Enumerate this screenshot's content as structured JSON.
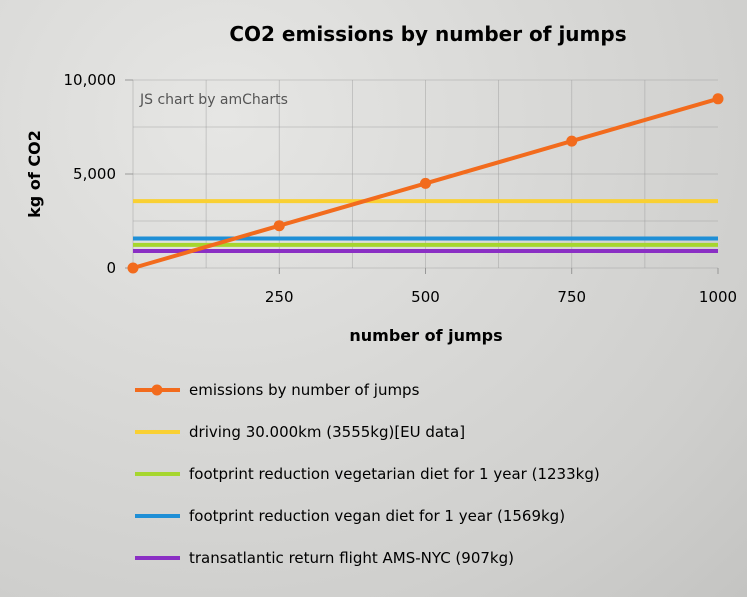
{
  "chart_data": {
    "type": "line",
    "title": "CO2 emissions by number of jumps",
    "xlabel": "number of jumps",
    "ylabel": "kg of CO2",
    "credit": "JS chart by amCharts",
    "xlim": [
      0,
      1000
    ],
    "ylim": [
      0,
      10000
    ],
    "x_ticks": [
      250,
      500,
      750,
      1000
    ],
    "x_tick_labels": [
      "250",
      "500",
      "750",
      "1000"
    ],
    "y_ticks": [
      0,
      5000,
      10000
    ],
    "y_tick_labels": [
      "0",
      "5,000",
      "10,000"
    ],
    "grid": true,
    "legend_position": "bottom",
    "series": [
      {
        "name": "emissions by number of jumps",
        "color": "#f26b1d",
        "kind": "line-markers",
        "points": [
          [
            0,
            0
          ],
          [
            250,
            2250
          ],
          [
            500,
            4500
          ],
          [
            750,
            6750
          ],
          [
            1000,
            9000
          ]
        ]
      },
      {
        "name": "driving 30.000km (3555kg)[EU data]",
        "color": "#f9d033",
        "kind": "constant",
        "value": 3555
      },
      {
        "name": "footprint reduction vegetarian diet for 1 year (1233kg)",
        "color": "#a6d62e",
        "kind": "constant",
        "value": 1233
      },
      {
        "name": "footprint reduction vegan diet for 1 year (1569kg)",
        "color": "#1f8fd6",
        "kind": "constant",
        "value": 1569
      },
      {
        "name": "transatlantic return flight AMS-NYC (907kg)",
        "color": "#8a2fc4",
        "kind": "constant",
        "value": 907
      }
    ]
  }
}
